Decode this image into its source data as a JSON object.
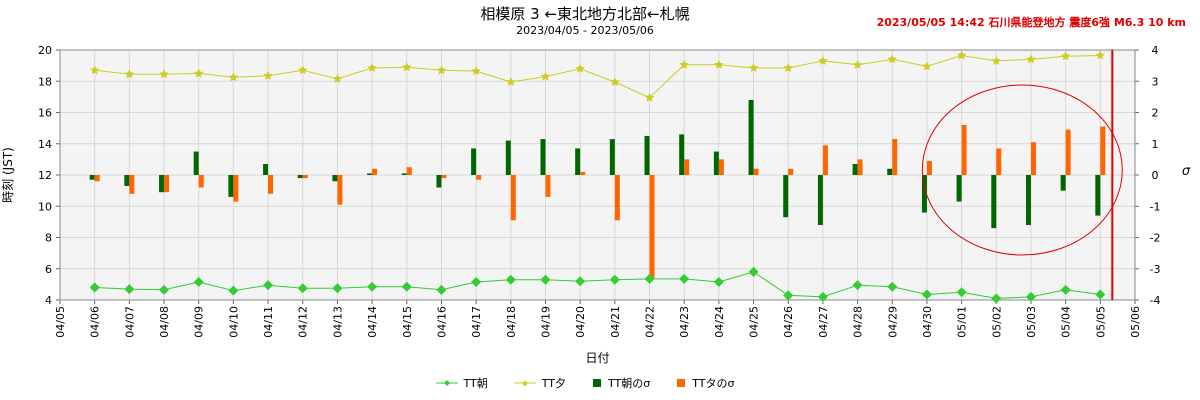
{
  "title": "相模原 3 ←東北地方北部←札幌",
  "subtitle": "2023/04/05 - 2023/05/06",
  "event_label": "2023/05/05 14:42 石川県能登地方 震度6強 M6.3 10 km",
  "colors": {
    "tt_morning": "#33cc33",
    "tt_evening": "#cccc22",
    "sigma_morning": "#006600",
    "sigma_evening": "#ff6600",
    "event_line": "#e00000",
    "grid": "#d8d8d8",
    "plot_bg": "#f4f4f4"
  },
  "chart_data": {
    "type": "line",
    "xlabel": "日付",
    "ylabel": "時刻 (JST)",
    "y2label": "σ",
    "ylim": [
      4,
      20
    ],
    "y2lim": [
      -4,
      4
    ],
    "yticks": [
      4,
      6,
      8,
      10,
      12,
      14,
      16,
      18,
      20
    ],
    "y2ticks": [
      -4,
      -3,
      -2,
      -1,
      0,
      1,
      2,
      3,
      4
    ],
    "grid": true,
    "legend_position": "bottom",
    "event_date": "2023-05-05",
    "x": [
      "04/05",
      "04/06",
      "04/07",
      "04/08",
      "04/09",
      "04/10",
      "04/11",
      "04/12",
      "04/13",
      "04/14",
      "04/15",
      "04/16",
      "04/17",
      "04/18",
      "04/19",
      "04/20",
      "04/21",
      "04/22",
      "04/23",
      "04/24",
      "04/25",
      "04/26",
      "04/27",
      "04/28",
      "04/29",
      "04/30",
      "05/01",
      "05/02",
      "05/03",
      "05/04",
      "05/05",
      "05/06"
    ],
    "series": [
      {
        "name": "TT朝",
        "axis": "left",
        "kind": "line-diamond",
        "values": [
          null,
          4.8,
          4.7,
          4.65,
          5.15,
          4.6,
          4.95,
          4.75,
          4.75,
          4.85,
          4.85,
          4.65,
          5.15,
          5.3,
          5.3,
          5.2,
          5.3,
          5.35,
          5.35,
          5.15,
          5.8,
          4.3,
          4.2,
          4.95,
          4.85,
          4.35,
          4.5,
          4.1,
          4.2,
          4.65,
          4.35,
          null
        ]
      },
      {
        "name": "TT夕",
        "axis": "left",
        "kind": "line-star",
        "values": [
          null,
          18.7,
          18.45,
          18.45,
          18.5,
          18.25,
          18.35,
          18.7,
          18.15,
          18.85,
          18.9,
          18.7,
          18.65,
          17.95,
          18.3,
          18.8,
          17.95,
          16.95,
          19.05,
          19.05,
          18.85,
          18.85,
          19.3,
          19.05,
          19.4,
          18.95,
          19.65,
          19.3,
          19.4,
          19.6,
          19.65,
          null
        ]
      },
      {
        "name": "TT朝のσ",
        "axis": "right",
        "kind": "bar",
        "values": [
          null,
          -0.15,
          -0.35,
          -0.55,
          0.75,
          -0.7,
          0.35,
          -0.1,
          -0.2,
          0.05,
          0.05,
          -0.4,
          0.85,
          1.1,
          1.15,
          0.85,
          1.15,
          1.25,
          1.3,
          0.75,
          2.4,
          -1.35,
          -1.6,
          0.35,
          0.2,
          -1.2,
          -0.85,
          -1.7,
          -1.6,
          -0.5,
          -1.3,
          null
        ]
      },
      {
        "name": "TTタのσ",
        "axis": "right",
        "kind": "bar",
        "values": [
          null,
          -0.2,
          -0.6,
          -0.55,
          -0.4,
          -0.85,
          -0.6,
          -0.1,
          -0.95,
          0.2,
          0.25,
          -0.1,
          -0.15,
          -1.45,
          -0.7,
          0.1,
          -1.45,
          -3.3,
          0.5,
          0.5,
          0.2,
          0.2,
          0.95,
          0.5,
          1.15,
          0.45,
          1.6,
          0.85,
          1.05,
          1.45,
          1.55,
          null
        ]
      }
    ]
  }
}
